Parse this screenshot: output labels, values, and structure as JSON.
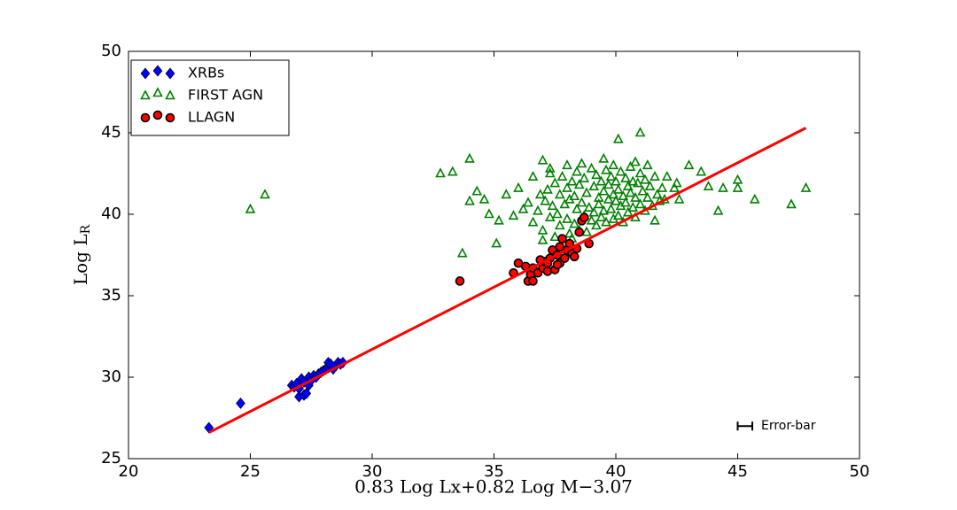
{
  "chart_data": {
    "type": "scatter",
    "xlabel": "0.83 Log Lx+0.82 Log M−3.07",
    "ylabel": {
      "text": "Log L",
      "subscript": "R"
    },
    "xlim": [
      20,
      50
    ],
    "ylim": [
      25,
      50
    ],
    "xticks": [
      20,
      25,
      30,
      35,
      40,
      45,
      50
    ],
    "yticks": [
      25,
      30,
      35,
      40,
      45,
      50
    ],
    "legend": "upper left",
    "series": [
      {
        "name": "XRBs",
        "color": "#0000ff",
        "marker": "diamond",
        "x": [
          23.3,
          24.6,
          26.7,
          26.8,
          26.9,
          27.0,
          27.0,
          27.1,
          27.2,
          27.2,
          27.3,
          27.4,
          27.4,
          27.5,
          27.6,
          27.7,
          27.8,
          27.9,
          28.0,
          28.1,
          28.2,
          28.2,
          28.3,
          28.4,
          28.5,
          28.6,
          28.7,
          28.8
        ],
        "values": [
          26.9,
          28.4,
          29.5,
          29.4,
          29.6,
          29.3,
          28.8,
          29.9,
          29.7,
          28.9,
          29.0,
          30.0,
          29.5,
          29.8,
          30.1,
          30.0,
          30.2,
          30.3,
          30.4,
          30.5,
          30.6,
          30.9,
          30.8,
          30.5,
          30.7,
          30.9,
          30.8,
          30.9
        ]
      },
      {
        "name": "FIRST AGN",
        "color": "#008000",
        "marker": "triangle",
        "x": [
          25.0,
          25.6,
          32.8,
          33.3,
          33.7,
          34.0,
          34.0,
          34.3,
          34.6,
          34.8,
          35.1,
          35.2,
          35.5,
          35.8,
          36.0,
          36.2,
          36.6,
          37.3,
          40.1,
          41.0,
          41.6,
          42.0,
          42.4,
          42.6,
          43.0,
          43.5,
          43.8,
          44.2,
          44.4,
          45.0,
          45.0,
          45.7,
          47.2,
          47.8,
          42.1,
          42.5,
          37.0,
          38.0,
          39.5,
          40.8,
          36.6,
          36.8,
          37.0,
          37.1,
          37.2,
          37.3,
          37.4,
          37.5,
          37.5,
          37.6,
          37.7,
          37.7,
          37.8,
          37.9,
          38.0,
          38.0,
          38.1,
          38.1,
          38.2,
          38.3,
          38.3,
          38.4,
          38.4,
          38.5,
          38.5,
          38.6,
          38.7,
          38.7,
          38.8,
          38.8,
          38.9,
          39.0,
          39.0,
          39.1,
          39.1,
          39.2,
          39.2,
          39.3,
          39.3,
          39.4,
          39.4,
          39.5,
          39.5,
          39.6,
          39.6,
          39.7,
          39.7,
          39.8,
          39.8,
          39.9,
          39.9,
          40.0,
          40.0,
          40.1,
          40.1,
          40.2,
          40.2,
          40.3,
          40.3,
          40.4,
          40.4,
          40.5,
          40.5,
          40.6,
          40.6,
          40.7,
          40.7,
          40.8,
          40.8,
          40.9,
          41.0,
          41.0,
          41.1,
          41.2,
          41.2,
          41.3,
          41.4,
          41.5,
          41.6,
          41.7,
          41.8,
          41.9,
          36.9,
          37.3,
          38.6,
          39.9,
          41.3,
          37.0,
          38.2,
          36.4
        ],
        "values": [
          40.3,
          41.2,
          42.5,
          42.6,
          37.6,
          43.4,
          40.8,
          41.4,
          40.9,
          40.0,
          38.2,
          39.6,
          41.2,
          39.9,
          41.6,
          40.3,
          42.3,
          42.5,
          44.6,
          45.0,
          39.6,
          40.9,
          41.6,
          40.9,
          43.0,
          42.6,
          41.7,
          40.2,
          41.6,
          42.1,
          41.6,
          40.9,
          40.6,
          41.6,
          42.3,
          41.9,
          43.3,
          43.0,
          43.4,
          43.2,
          39.5,
          40.2,
          39.0,
          40.8,
          41.5,
          39.8,
          40.5,
          38.6,
          41.9,
          40.0,
          39.3,
          41.2,
          42.3,
          40.6,
          39.7,
          41.6,
          38.8,
          40.9,
          42.0,
          39.4,
          41.1,
          40.3,
          42.6,
          39.0,
          41.8,
          40.7,
          39.9,
          42.2,
          41.3,
          38.9,
          40.4,
          42.8,
          39.6,
          41.7,
          40.1,
          42.4,
          39.3,
          41.0,
          40.6,
          42.0,
          39.8,
          41.4,
          40.2,
          42.7,
          39.5,
          41.8,
          40.9,
          40.3,
          42.3,
          41.2,
          39.7,
          40.8,
          42.0,
          41.5,
          39.9,
          42.6,
          40.5,
          41.1,
          39.5,
          42.2,
          40.7,
          41.7,
          40.1,
          42.9,
          41.3,
          40.4,
          42.0,
          41.0,
          39.8,
          41.9,
          40.6,
          42.5,
          41.4,
          40.2,
          42.1,
          41.0,
          41.7,
          40.5,
          42.3,
          41.2,
          40.8,
          41.6,
          41.2,
          42.8,
          43.1,
          43.0,
          43.0,
          38.4,
          38.5,
          40.7
        ]
      },
      {
        "name": "LLAGN",
        "color": "#ff0000",
        "marker": "circle",
        "x": [
          33.6,
          35.8,
          36.0,
          36.3,
          36.4,
          36.5,
          36.6,
          36.6,
          36.8,
          37.0,
          37.1,
          37.2,
          37.3,
          37.4,
          37.5,
          37.6,
          37.7,
          37.7,
          37.8,
          37.9,
          38.0,
          38.1,
          38.2,
          38.3,
          38.4,
          38.5,
          38.6,
          38.7,
          38.9,
          37.6,
          36.9,
          37.2
        ],
        "values": [
          35.9,
          36.4,
          37.0,
          36.8,
          35.9,
          36.3,
          36.7,
          35.9,
          36.4,
          36.7,
          37.1,
          36.5,
          37.3,
          37.8,
          36.6,
          37.5,
          37.0,
          38.0,
          38.5,
          37.3,
          37.8,
          38.2,
          37.6,
          37.4,
          37.9,
          38.9,
          39.6,
          39.8,
          38.2,
          36.9,
          37.2,
          37.0
        ]
      }
    ],
    "fit": {
      "x": [
        23.3,
        47.8
      ],
      "values": [
        26.6,
        45.3
      ],
      "color": "#ff0000"
    },
    "error_bar": {
      "label": "Error-bar",
      "x": 45.3,
      "y": 27.0,
      "xerr": 0.3
    }
  }
}
